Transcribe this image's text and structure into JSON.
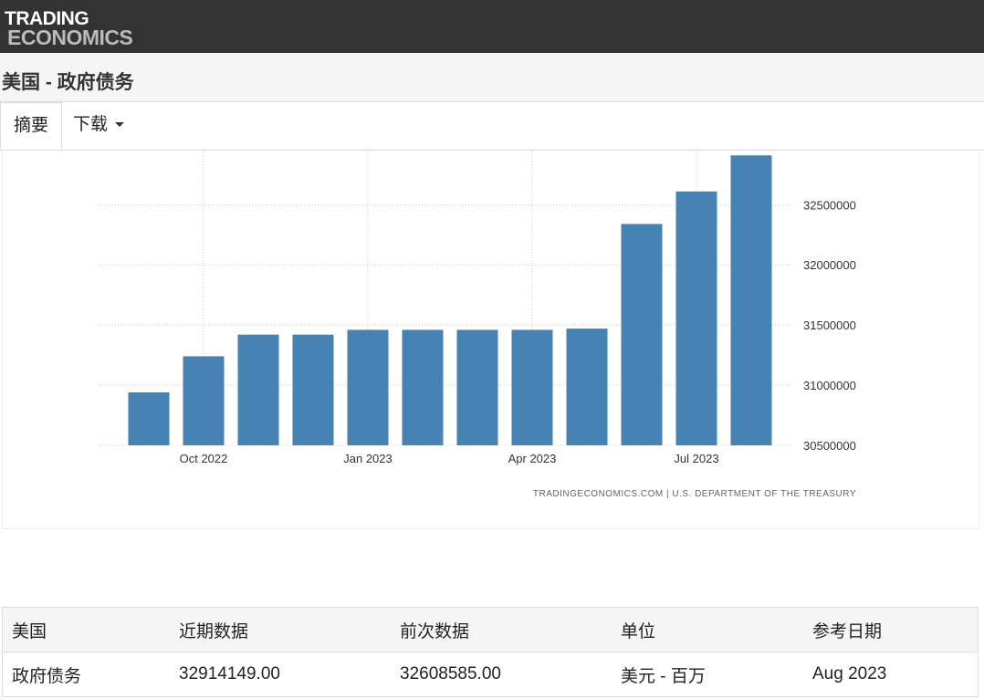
{
  "header": {
    "logo_line1": "TRADING",
    "logo_line2": "ECONOMICS",
    "title": "美国 - 政府债务"
  },
  "tabs": [
    "摘要",
    "下载"
  ],
  "chart_data": {
    "type": "bar",
    "categories": [
      null,
      "Oct 2022",
      null,
      null,
      "Jan 2023",
      null,
      null,
      "Apr 2023",
      null,
      null,
      "Jul 2023",
      null
    ],
    "values": [
      30940000,
      31240000,
      31420000,
      31420000,
      31460000,
      31460000,
      31460000,
      31460000,
      31470000,
      32340000,
      32610000,
      32910000
    ],
    "color": "#4682b4",
    "ylim": [
      30500000,
      32950000
    ],
    "yticks": [
      30500000,
      31000000,
      31500000,
      32000000,
      32500000
    ],
    "grid": true,
    "source": "TRADINGECONOMICS.COM | U.S. DEPARTMENT OF THE TREASURY"
  },
  "table": {
    "header": [
      "美国",
      "近期数据",
      "前次数据",
      "单位",
      "参考日期"
    ],
    "rows": [
      [
        "政府债务",
        "32914149.00",
        "32608585.00",
        "美元 - 百万",
        "Aug 2023"
      ]
    ]
  }
}
